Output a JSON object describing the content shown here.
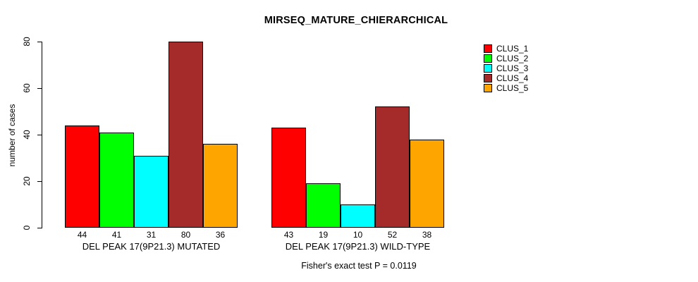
{
  "page": {
    "background": "#FFFFFF",
    "text_color": "#000000"
  },
  "chart_data": {
    "type": "bar",
    "title": "MIRSEQ_MATURE_CHIERARCHICAL",
    "ylabel": "number of cases",
    "xlabel": "",
    "ylim": [
      0,
      80
    ],
    "y_ticks": [
      0,
      20,
      40,
      60,
      80
    ],
    "grid": false,
    "legend_position": "top-right",
    "bar_value_labels": true,
    "categories": [
      "DEL PEAK 17(9P21.3) MUTATED",
      "DEL PEAK 17(9P21.3) WILD-TYPE"
    ],
    "series": [
      {
        "name": "CLUS_1",
        "color": "#FF0000",
        "values": [
          44,
          43
        ]
      },
      {
        "name": "CLUS_2",
        "color": "#00FF00",
        "values": [
          41,
          19
        ]
      },
      {
        "name": "CLUS_3",
        "color": "#00FFFF",
        "values": [
          31,
          10
        ]
      },
      {
        "name": "CLUS_4",
        "color": "#A52A2A",
        "values": [
          80,
          52
        ]
      },
      {
        "name": "CLUS_5",
        "color": "#FFA500",
        "values": [
          36,
          38
        ]
      }
    ],
    "annotation": "Fisher's exact test P = 0.0119",
    "axis_color": "#000000",
    "bar_border_color": "#000000"
  }
}
